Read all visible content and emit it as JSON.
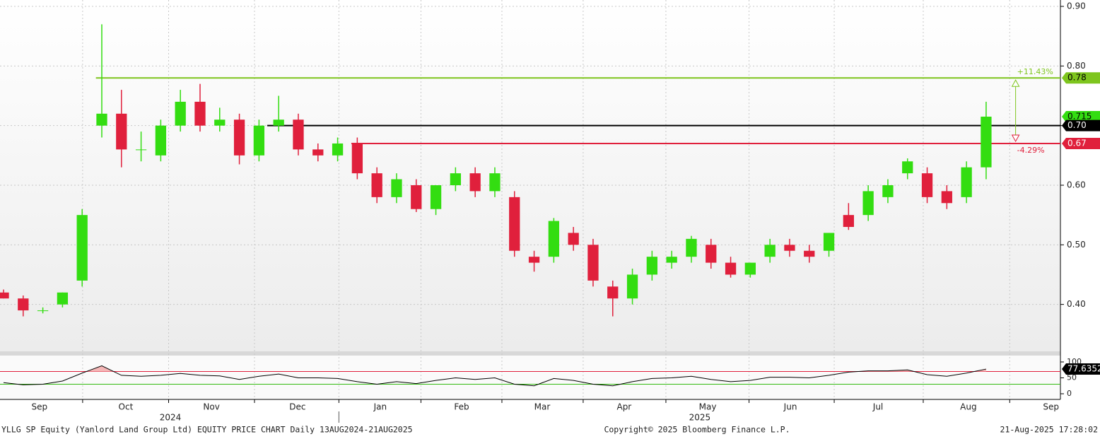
{
  "chart_data": {
    "type": "candlestick",
    "up_color": "#33dd11",
    "down_color": "#e0203c",
    "categories": [
      null,
      null,
      null,
      null,
      null,
      null,
      null,
      null,
      null,
      null,
      null,
      null,
      null,
      null,
      null,
      null,
      null,
      null,
      null,
      null,
      null,
      null,
      null,
      null,
      null,
      null,
      null,
      null,
      null,
      null,
      null,
      null,
      null,
      null,
      null,
      null,
      null,
      null,
      null,
      null,
      null,
      null,
      null,
      null,
      null,
      null,
      null,
      null,
      null,
      null,
      null
    ],
    "open": [
      0.42,
      0.41,
      0.39,
      0.4,
      0.44,
      0.7,
      0.72,
      0.66,
      0.65,
      0.7,
      0.74,
      0.7,
      0.71,
      0.65,
      0.7,
      0.71,
      0.66,
      0.65,
      0.67,
      0.62,
      0.58,
      0.6,
      0.56,
      0.6,
      0.62,
      0.59,
      0.58,
      0.48,
      0.48,
      0.52,
      0.5,
      0.43,
      0.41,
      0.45,
      0.47,
      0.48,
      0.5,
      0.47,
      0.45,
      0.48,
      0.5,
      0.49,
      0.49,
      0.55,
      0.55,
      0.58,
      0.62,
      0.62,
      0.59,
      0.58,
      0.63
    ],
    "high": [
      0.425,
      0.415,
      0.395,
      0.42,
      0.56,
      0.87,
      0.76,
      0.69,
      0.71,
      0.76,
      0.77,
      0.73,
      0.72,
      0.71,
      0.75,
      0.72,
      0.67,
      0.68,
      0.68,
      0.63,
      0.62,
      0.61,
      0.6,
      0.63,
      0.63,
      0.63,
      0.59,
      0.49,
      0.545,
      0.53,
      0.51,
      0.44,
      0.46,
      0.49,
      0.49,
      0.515,
      0.51,
      0.48,
      0.47,
      0.51,
      0.51,
      0.5,
      0.52,
      0.57,
      0.6,
      0.61,
      0.645,
      0.63,
      0.6,
      0.64,
      0.74
    ],
    "low": [
      0.41,
      0.38,
      0.385,
      0.395,
      0.43,
      0.68,
      0.63,
      0.64,
      0.64,
      0.69,
      0.69,
      0.69,
      0.635,
      0.64,
      0.69,
      0.65,
      0.64,
      0.64,
      0.61,
      0.57,
      0.57,
      0.555,
      0.55,
      0.59,
      0.58,
      0.58,
      0.48,
      0.455,
      0.47,
      0.49,
      0.43,
      0.38,
      0.4,
      0.44,
      0.46,
      0.47,
      0.46,
      0.445,
      0.445,
      0.47,
      0.48,
      0.47,
      0.48,
      0.525,
      0.54,
      0.57,
      0.61,
      0.57,
      0.56,
      0.57,
      0.61
    ],
    "close": [
      0.41,
      0.39,
      0.39,
      0.42,
      0.55,
      0.72,
      0.66,
      0.66,
      0.7,
      0.74,
      0.7,
      0.71,
      0.65,
      0.7,
      0.71,
      0.66,
      0.65,
      0.67,
      0.62,
      0.58,
      0.61,
      0.56,
      0.6,
      0.62,
      0.59,
      0.62,
      0.49,
      0.47,
      0.54,
      0.5,
      0.44,
      0.41,
      0.45,
      0.48,
      0.48,
      0.51,
      0.47,
      0.45,
      0.47,
      0.5,
      0.49,
      0.48,
      0.52,
      0.53,
      0.59,
      0.6,
      0.64,
      0.58,
      0.57,
      0.63,
      0.715
    ],
    "xlim": [
      -0.18,
      53.78
    ],
    "xticks": [
      {
        "value": 1.83,
        "label": "Sep"
      },
      {
        "value": 6.22,
        "label": "Oct"
      },
      {
        "value": 10.58,
        "label": "Nov"
      },
      {
        "value": 14.96,
        "label": "Dec"
      },
      {
        "value": 19.17,
        "label": "Jan"
      },
      {
        "value": 23.31,
        "label": "Feb"
      },
      {
        "value": 27.41,
        "label": "Mar"
      },
      {
        "value": 31.58,
        "label": "Apr"
      },
      {
        "value": 35.83,
        "label": "May"
      },
      {
        "value": 40.04,
        "label": "Jun"
      },
      {
        "value": 44.5,
        "label": "Jul"
      },
      {
        "value": 49.1,
        "label": "Aug"
      },
      {
        "value": 53.3,
        "label": "Sep"
      }
    ],
    "year_labels": [
      {
        "value": 8.49,
        "label": "2024"
      },
      {
        "value": 35.43,
        "label": "2025"
      }
    ],
    "ylim": [
      0.3213,
      0.9107
    ],
    "yticks": [
      {
        "value": 0.9,
        "label": "0.90"
      },
      {
        "value": 0.8,
        "label": "0.80"
      },
      {
        "value": 0.7,
        "label": "0.70"
      },
      {
        "value": 0.6,
        "label": "0.60"
      },
      {
        "value": 0.5,
        "label": "0.50"
      },
      {
        "value": 0.4,
        "label": "0.40"
      }
    ],
    "grid": true,
    "levels": [
      {
        "value": 0.78,
        "label": "0.78",
        "start": 4.7,
        "color": "#7ec51e"
      },
      {
        "value": 0.7,
        "label": "0.70",
        "start": 13.42,
        "color": "#000000"
      },
      {
        "value": 0.67,
        "label": "0.67",
        "start": 17.7,
        "color": "#e0203c"
      }
    ],
    "annotations": [
      "+11.43%",
      "-4.29%"
    ],
    "indicator": {
      "type": "line",
      "color": "#000000",
      "values": [
        35,
        28,
        30,
        40,
        65,
        88,
        58,
        55,
        58,
        64,
        58,
        56,
        45,
        55,
        62,
        50,
        50,
        48,
        38,
        30,
        38,
        32,
        42,
        50,
        45,
        50,
        30,
        25,
        48,
        42,
        30,
        25,
        38,
        48,
        50,
        55,
        45,
        38,
        42,
        52,
        52,
        50,
        58,
        68,
        72,
        72,
        75,
        60,
        55,
        65,
        77.6352
      ],
      "ylim": [
        -17.8,
        120
      ],
      "yticks": [
        0,
        50,
        100
      ],
      "upper": 70,
      "lower": 30
    },
    "footer": {
      "left": "YLLG SP Equity (Yanlord Land Group Ltd) EQUITY PRICE CHART  Daily 13AUG2024-21AUG2025",
      "center": "Copyright© 2025 Bloomberg Finance L.P.",
      "right": "21-Aug-2025 17:28:02"
    }
  }
}
